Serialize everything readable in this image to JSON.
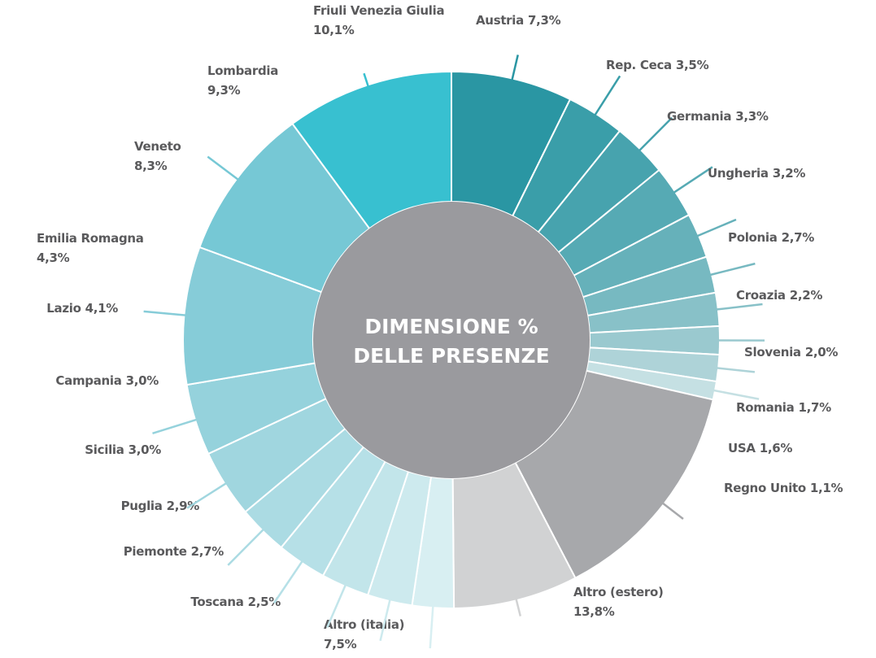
{
  "chart_data": {
    "type": "donut",
    "center_label": [
      "DIMENSIONE %",
      "DELLE PRESENZE"
    ],
    "categories": [
      "Austria",
      "Rep. Ceca",
      "Germania",
      "Ungheria",
      "Polonia",
      "Croazia",
      "Slovenia",
      "Romania",
      "USA",
      "Regno Unito",
      "Altro (estero)",
      "Altro (italia)",
      "Toscana",
      "Piemonte",
      "Puglia",
      "Sicilia",
      "Campania",
      "Lazio",
      "Emilia Romagna",
      "Veneto",
      "Lombardia",
      "Friuli Venezia Giulia"
    ],
    "values": [
      7.3,
      3.5,
      3.3,
      3.2,
      2.7,
      2.2,
      2.0,
      1.7,
      1.6,
      1.1,
      13.8,
      7.5,
      2.5,
      2.7,
      2.9,
      3.0,
      3.0,
      4.1,
      4.3,
      8.3,
      9.3,
      10.1
    ],
    "value_labels": [
      "7,3%",
      "3,5%",
      "3,3%",
      "3,2%",
      "2,7%",
      "2,2%",
      "2,0%",
      "1,7%",
      "1,6%",
      "1,1%",
      "13,8%",
      "7,5%",
      "2,5%",
      "2,7%",
      "2,9%",
      "3,0%",
      "3,0%",
      "4,1%",
      "4,3%",
      "8,3%",
      "9,3%",
      "10,1%"
    ],
    "colors": [
      "#2a96a3",
      "#3a9ea9",
      "#47a3ae",
      "#56aab4",
      "#66b1ba",
      "#77b9c1",
      "#88c1c8",
      "#9ac9cf",
      "#aed3d8",
      "#c5e0e3",
      "#a7a8ab",
      "#d1d2d3",
      "#d8eff2",
      "#cdeaee",
      "#c2e5ea",
      "#b6e0e7",
      "#abdbe3",
      "#a0d6df",
      "#95d2dc",
      "#86ccd8",
      "#76c8d5",
      "#38c0d0"
    ],
    "center_color": "#9a9a9e"
  }
}
